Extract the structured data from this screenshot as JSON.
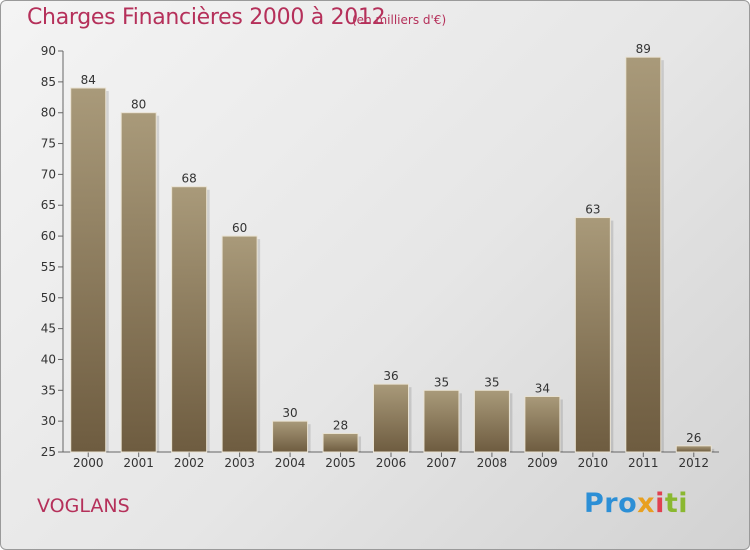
{
  "chart_data": {
    "type": "bar",
    "title": "Charges Financières 2000 à 2012",
    "subtitle": "(en milliers d'€)",
    "categories": [
      "2000",
      "2001",
      "2002",
      "2003",
      "2004",
      "2005",
      "2006",
      "2007",
      "2008",
      "2009",
      "2010",
      "2011",
      "2012"
    ],
    "values": [
      84,
      80,
      68,
      60,
      30,
      28,
      36,
      35,
      35,
      34,
      63,
      89,
      26
    ],
    "ylim": [
      25,
      90
    ],
    "yticks": [
      25,
      30,
      35,
      40,
      45,
      50,
      55,
      60,
      65,
      70,
      75,
      80,
      85,
      90
    ],
    "grid": false,
    "xlabel": "",
    "ylabel": "",
    "colors": {
      "bar_light": "#a99a7a",
      "bar_dark": "#6e5c40",
      "title": "#b5305a"
    }
  },
  "commune": "VOGLANS",
  "logo": {
    "p1": "Pro",
    "p2": "x",
    "p3": "i",
    "p4": "ti"
  }
}
